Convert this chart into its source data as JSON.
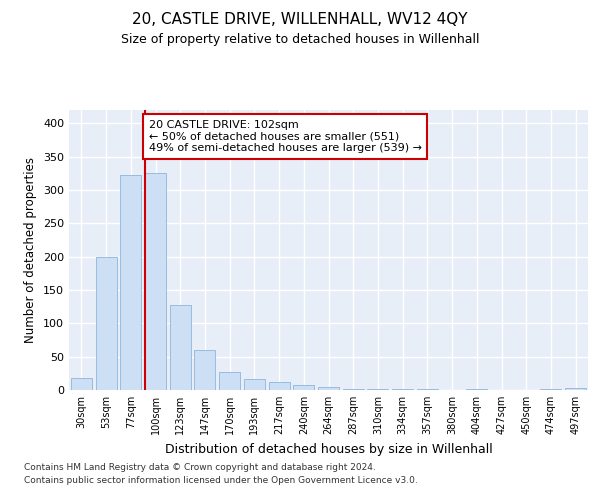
{
  "title": "20, CASTLE DRIVE, WILLENHALL, WV12 4QY",
  "subtitle": "Size of property relative to detached houses in Willenhall",
  "xlabel": "Distribution of detached houses by size in Willenhall",
  "ylabel": "Number of detached properties",
  "bar_color": "#ccdff5",
  "bar_edge_color": "#99bbdd",
  "background_color": "#e8eef8",
  "grid_color": "#ffffff",
  "categories": [
    "30sqm",
    "53sqm",
    "77sqm",
    "100sqm",
    "123sqm",
    "147sqm",
    "170sqm",
    "193sqm",
    "217sqm",
    "240sqm",
    "264sqm",
    "287sqm",
    "310sqm",
    "334sqm",
    "357sqm",
    "380sqm",
    "404sqm",
    "427sqm",
    "450sqm",
    "474sqm",
    "497sqm"
  ],
  "values": [
    18,
    200,
    322,
    325,
    128,
    60,
    27,
    16,
    12,
    7,
    5,
    2,
    1,
    2,
    1,
    0,
    1,
    0,
    0,
    2,
    3
  ],
  "ylim": [
    0,
    420
  ],
  "yticks": [
    0,
    50,
    100,
    150,
    200,
    250,
    300,
    350,
    400
  ],
  "marker_index": 3,
  "marker_color": "#cc0000",
  "annotation_title": "20 CASTLE DRIVE: 102sqm",
  "annotation_line1": "← 50% of detached houses are smaller (551)",
  "annotation_line2": "49% of semi-detached houses are larger (539) →",
  "annotation_box_color": "#ffffff",
  "annotation_box_edge": "#cc0000",
  "footer1": "Contains HM Land Registry data © Crown copyright and database right 2024.",
  "footer2": "Contains public sector information licensed under the Open Government Licence v3.0."
}
